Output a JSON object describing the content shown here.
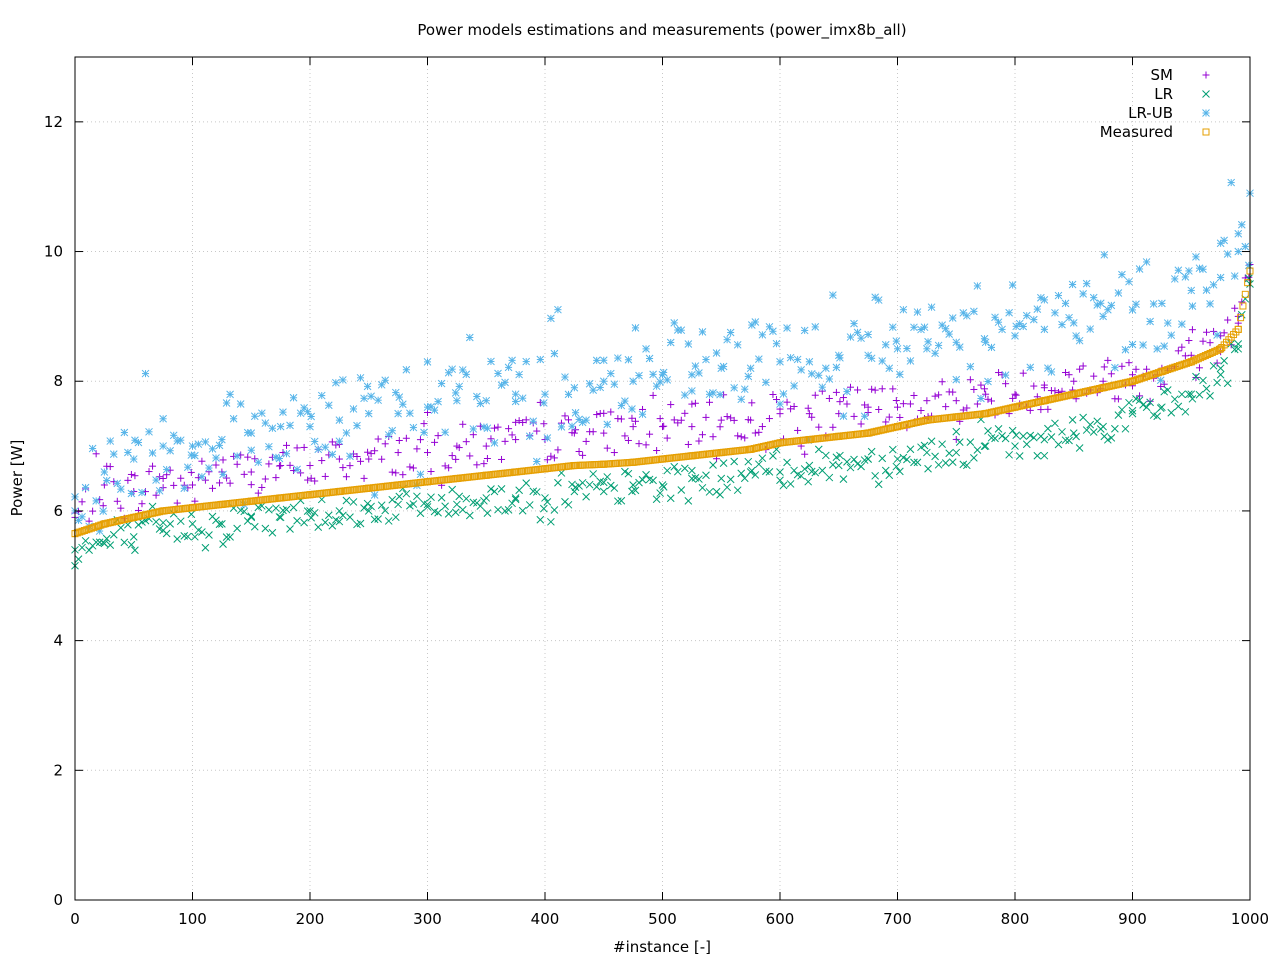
{
  "chart_data": {
    "type": "scatter",
    "title": "Power models estimations and measurements (power_imx8b_all)",
    "xlabel": "#instance [-]",
    "ylabel": "Power [W]",
    "xlim": [
      0,
      1000
    ],
    "ylim": [
      0,
      13
    ],
    "x_ticks": [
      "0",
      "100",
      "200",
      "300",
      "400",
      "500",
      "600",
      "700",
      "800",
      "900",
      "1000"
    ],
    "y_ticks": [
      "0",
      "2",
      "4",
      "6",
      "8",
      "10",
      "12"
    ],
    "grid": true,
    "legend_position": "top-right",
    "x": [
      0,
      25,
      50,
      75,
      100,
      125,
      150,
      175,
      200,
      225,
      250,
      275,
      300,
      325,
      350,
      375,
      400,
      425,
      450,
      475,
      500,
      525,
      550,
      575,
      600,
      625,
      650,
      675,
      700,
      725,
      750,
      775,
      800,
      825,
      850,
      875,
      900,
      925,
      950,
      975,
      990,
      1000
    ],
    "series": [
      {
        "name": "SM",
        "marker": "plus",
        "color": "#9400d3",
        "values": [
          5.9,
          6.4,
          6.3,
          6.5,
          6.4,
          6.6,
          6.6,
          6.7,
          6.7,
          6.8,
          6.8,
          6.9,
          6.9,
          7.0,
          7.0,
          7.1,
          7.1,
          7.2,
          7.2,
          7.3,
          7.3,
          7.3,
          7.4,
          7.4,
          7.5,
          7.5,
          7.5,
          7.6,
          7.6,
          7.7,
          7.7,
          7.8,
          7.8,
          7.9,
          8.0,
          8.0,
          8.1,
          8.2,
          8.4,
          8.7,
          9.0,
          9.8
        ]
      },
      {
        "name": "LR",
        "marker": "cross",
        "color": "#009e73",
        "values": [
          5.4,
          5.5,
          5.6,
          5.7,
          5.8,
          5.8,
          5.9,
          5.9,
          6.0,
          6.0,
          6.0,
          6.1,
          6.1,
          6.1,
          6.2,
          6.2,
          6.2,
          6.3,
          6.3,
          6.4,
          6.4,
          6.5,
          6.5,
          6.6,
          6.6,
          6.7,
          6.7,
          6.8,
          6.8,
          6.9,
          6.9,
          7.0,
          7.0,
          7.1,
          7.2,
          7.3,
          7.5,
          7.6,
          7.8,
          8.1,
          8.5,
          9.5
        ]
      },
      {
        "name": "LR-UB",
        "marker": "star",
        "color": "#56b4e9",
        "values": [
          6.0,
          6.6,
          6.8,
          7.0,
          7.0,
          7.1,
          7.2,
          7.3,
          7.3,
          7.4,
          7.5,
          7.5,
          7.6,
          7.7,
          7.7,
          7.8,
          7.8,
          7.9,
          8.0,
          8.0,
          8.1,
          8.1,
          8.2,
          8.2,
          8.3,
          8.3,
          8.4,
          8.4,
          8.5,
          8.5,
          8.6,
          8.6,
          8.7,
          8.8,
          8.9,
          9.0,
          9.1,
          9.2,
          9.4,
          9.6,
          10.0,
          10.9
        ]
      },
      {
        "name": "Measured",
        "marker": "square",
        "color": "#e69f00",
        "values": [
          5.65,
          5.8,
          5.9,
          6.0,
          6.05,
          6.1,
          6.15,
          6.2,
          6.25,
          6.3,
          6.35,
          6.4,
          6.45,
          6.5,
          6.55,
          6.6,
          6.65,
          6.7,
          6.72,
          6.75,
          6.8,
          6.85,
          6.9,
          6.95,
          7.05,
          7.1,
          7.15,
          7.2,
          7.3,
          7.4,
          7.45,
          7.5,
          7.6,
          7.7,
          7.8,
          7.9,
          8.0,
          8.15,
          8.3,
          8.5,
          8.8,
          9.7
        ]
      }
    ]
  }
}
